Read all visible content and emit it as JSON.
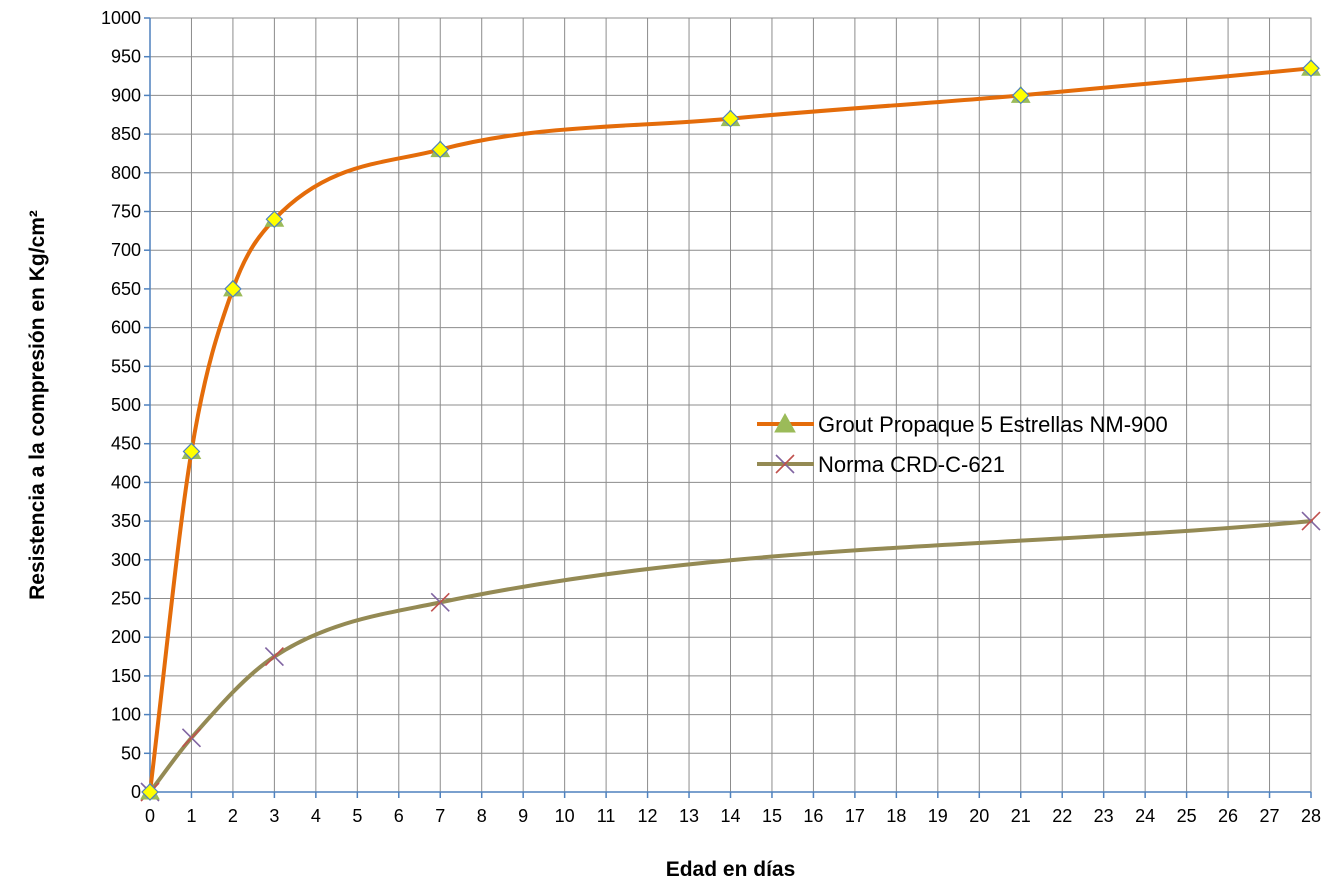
{
  "chart_data": {
    "type": "line",
    "title": "",
    "xlabel": "Edad en días",
    "ylabel": "Resistencia a la compresión en Kg/cm²",
    "xlim": [
      0,
      28
    ],
    "ylim": [
      0,
      1000
    ],
    "x_ticks": [
      0,
      1,
      2,
      3,
      4,
      5,
      6,
      7,
      8,
      9,
      10,
      11,
      12,
      13,
      14,
      15,
      16,
      17,
      18,
      19,
      20,
      21,
      22,
      23,
      24,
      25,
      26,
      27,
      28
    ],
    "y_ticks": [
      0,
      50,
      100,
      150,
      200,
      250,
      300,
      350,
      400,
      450,
      500,
      550,
      600,
      650,
      700,
      750,
      800,
      850,
      900,
      950,
      1000
    ],
    "grid": true,
    "legend_position": "right-center",
    "series": [
      {
        "name": "Grout Propaque 5 Estrellas NM-900",
        "color": "#e46c0a",
        "marker": "triangle-diamond",
        "x": [
          0,
          1,
          2,
          3,
          7,
          14,
          21,
          28
        ],
        "y": [
          0,
          440,
          650,
          740,
          830,
          870,
          900,
          935
        ]
      },
      {
        "name": "Norma CRD-C-621",
        "color": "#948a54",
        "marker": "x",
        "x": [
          0,
          1,
          3,
          7,
          28
        ],
        "y": [
          0,
          70,
          175,
          245,
          350
        ]
      }
    ]
  }
}
